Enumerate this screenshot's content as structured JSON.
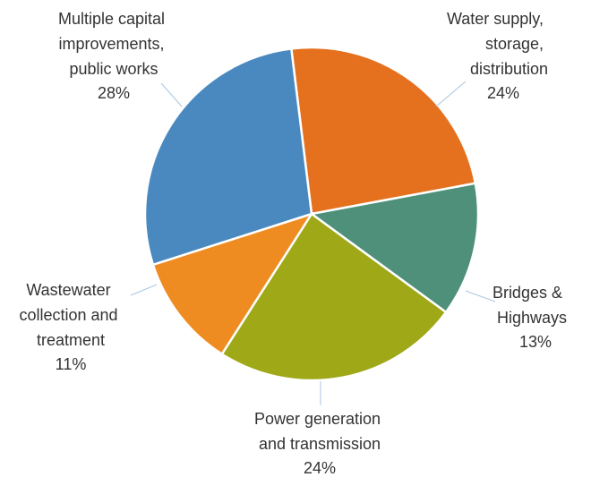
{
  "chart_data": {
    "type": "pie",
    "title": "",
    "slices": [
      {
        "label_lines": [
          "Water supply,",
          "storage,",
          "distribution"
        ],
        "percent_text": "24%",
        "value": 24,
        "color": "#e5711f"
      },
      {
        "label_lines": [
          "Bridges &",
          "Highways"
        ],
        "percent_text": "13%",
        "value": 13,
        "color": "#4e907a"
      },
      {
        "label_lines": [
          "Power generation",
          "and transmission"
        ],
        "percent_text": "24%",
        "value": 24,
        "color": "#9fa817"
      },
      {
        "label_lines": [
          "Wastewater",
          "collection and",
          "treatment"
        ],
        "percent_text": "11%",
        "value": 11,
        "color": "#ee8c22"
      },
      {
        "label_lines": [
          "Multiple capital",
          "improvements,",
          "public works"
        ],
        "percent_text": "28%",
        "value": 28,
        "color": "#4a89bf"
      }
    ]
  }
}
